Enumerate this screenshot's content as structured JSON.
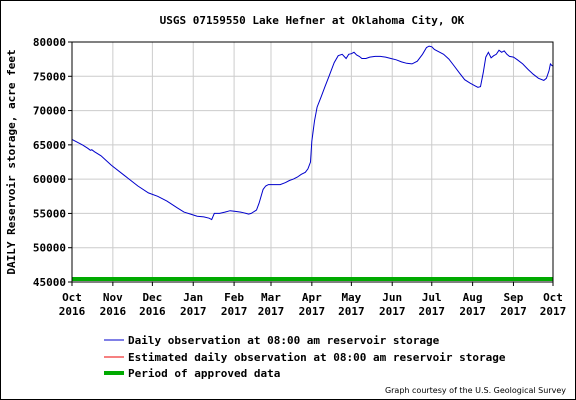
{
  "chart_data": {
    "type": "line",
    "title": "USGS 07159550 Lake Hefner at Oklahoma City, OK",
    "ylabel": "DAILY Reservoir storage, acre feet",
    "xlabel": "",
    "ylim": [
      45000,
      80000
    ],
    "yticks": [
      45000,
      50000,
      55000,
      60000,
      65000,
      70000,
      75000,
      80000
    ],
    "ytick_labels": [
      "45000",
      "50000",
      "55000",
      "60000",
      "65000",
      "70000",
      "75000",
      "80000"
    ],
    "xlim": [
      0,
      365
    ],
    "xticks": [
      {
        "x": 0,
        "month": "Oct",
        "year": "2016"
      },
      {
        "x": 31,
        "month": "Nov",
        "year": "2016"
      },
      {
        "x": 61,
        "month": "Dec",
        "year": "2016"
      },
      {
        "x": 92,
        "month": "Jan",
        "year": "2017"
      },
      {
        "x": 123,
        "month": "Feb",
        "year": "2017"
      },
      {
        "x": 151,
        "month": "Mar",
        "year": "2017"
      },
      {
        "x": 182,
        "month": "Apr",
        "year": "2017"
      },
      {
        "x": 212,
        "month": "May",
        "year": "2017"
      },
      {
        "x": 243,
        "month": "Jun",
        "year": "2017"
      },
      {
        "x": 273,
        "month": "Jul",
        "year": "2017"
      },
      {
        "x": 304,
        "month": "Aug",
        "year": "2017"
      },
      {
        "x": 335,
        "month": "Sep",
        "year": "2017"
      },
      {
        "x": 365,
        "month": "Oct",
        "year": "2017"
      }
    ],
    "grid": true,
    "series": [
      {
        "name": "Daily observation at 08:00 am reservoir storage",
        "color": "#0000cc",
        "x": [
          0,
          8,
          12,
          14,
          15,
          17,
          22,
          30,
          40,
          50,
          58,
          65,
          72,
          80,
          85,
          90,
          95,
          100,
          104,
          106,
          108,
          112,
          116,
          120,
          124,
          128,
          130,
          132,
          134,
          136,
          140,
          142,
          145,
          147,
          149,
          152,
          158,
          162,
          165,
          168,
          171,
          174,
          177,
          179,
          181,
          182,
          184,
          186,
          189,
          192,
          195,
          199,
          202,
          205,
          208,
          210,
          212,
          214,
          216,
          218,
          220,
          223,
          226,
          230,
          234,
          238,
          242,
          246,
          250,
          254,
          258,
          262,
          266,
          269,
          271,
          273,
          275,
          278,
          282,
          286,
          290,
          294,
          298,
          302,
          306,
          308,
          310,
          312,
          314,
          316,
          318,
          320,
          322,
          324,
          326,
          328,
          330,
          332,
          335,
          338,
          342,
          346,
          350,
          354,
          358,
          360,
          362,
          363,
          364,
          365
        ],
        "values": [
          65800,
          65000,
          64500,
          64200,
          64300,
          64000,
          63400,
          62000,
          60500,
          59000,
          58000,
          57500,
          56800,
          55800,
          55200,
          54900,
          54600,
          54500,
          54300,
          54100,
          55000,
          55000,
          55200,
          55400,
          55300,
          55200,
          55100,
          55000,
          54900,
          55000,
          55500,
          56500,
          58500,
          59000,
          59200,
          59200,
          59200,
          59500,
          59800,
          60000,
          60300,
          60700,
          61000,
          61500,
          62500,
          65500,
          68500,
          70500,
          72000,
          73500,
          75000,
          77000,
          78000,
          78200,
          77600,
          78200,
          78300,
          78500,
          78100,
          77900,
          77600,
          77600,
          77800,
          77900,
          77900,
          77800,
          77600,
          77400,
          77100,
          76900,
          76800,
          77200,
          78200,
          79200,
          79400,
          79300,
          78900,
          78600,
          78200,
          77500,
          76500,
          75500,
          74500,
          74000,
          73600,
          73400,
          73500,
          75500,
          77800,
          78500,
          77700,
          78000,
          78200,
          78800,
          78500,
          78700,
          78200,
          77900,
          77800,
          77400,
          76800,
          76000,
          75300,
          74700,
          74400,
          74700,
          75800,
          76800,
          76600,
          76500
        ]
      },
      {
        "name": "Estimated daily observation at 08:00 am reservoir storage",
        "color": "#ee0000",
        "x": [],
        "values": []
      },
      {
        "name": "Period of approved data",
        "color": "#00aa00",
        "x": [
          0,
          365
        ],
        "values": [
          45000,
          45000
        ]
      }
    ],
    "legend_placement": "bottom-left",
    "credit": "Graph courtesy of the U.S. Geological Survey"
  }
}
